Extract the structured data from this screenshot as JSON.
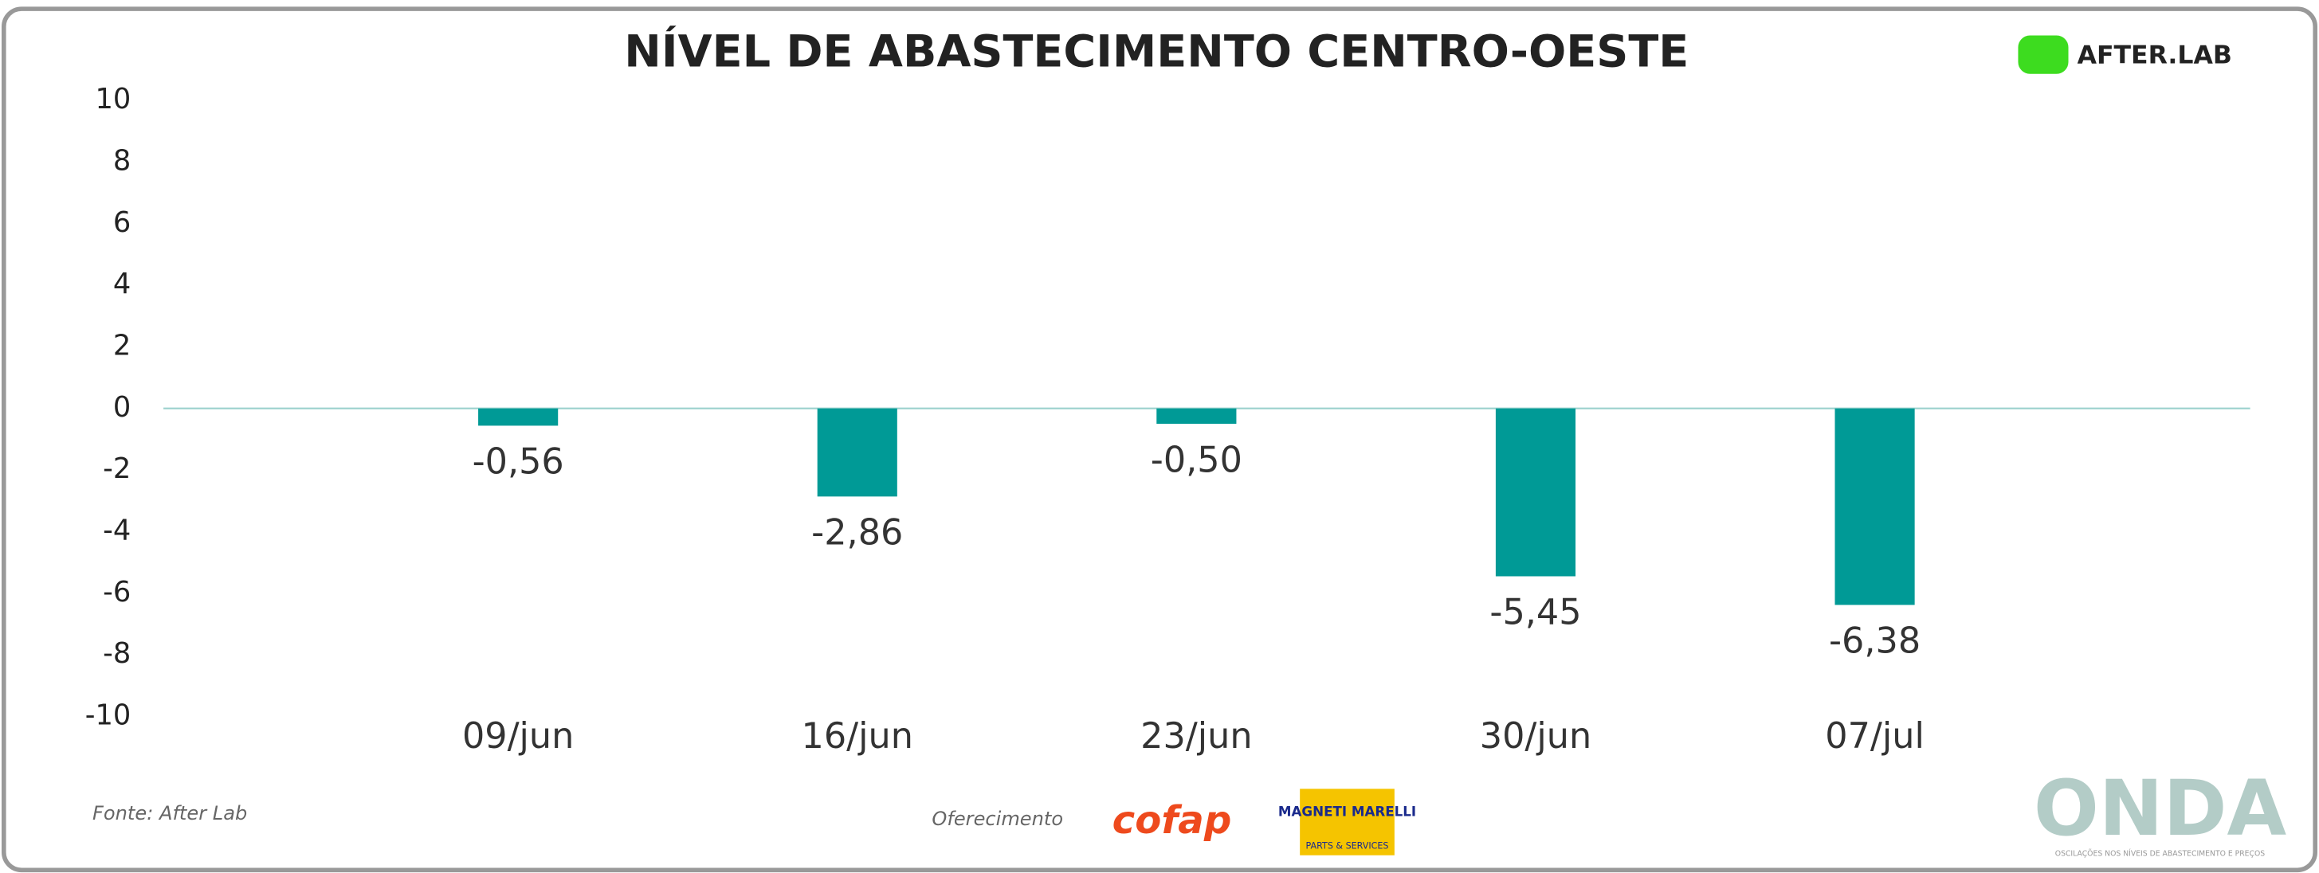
{
  "chart_data": {
    "type": "bar",
    "title": "NÍVEL DE ABASTECIMENTO CENTRO-OESTE",
    "categories": [
      "09/jun",
      "16/jun",
      "23/jun",
      "30/jun",
      "07/jul"
    ],
    "values": [
      -0.56,
      -2.86,
      -0.5,
      -5.45,
      -6.38
    ],
    "value_labels": [
      "-0,56",
      "-2,86",
      "-0,50",
      "-5,45",
      "-6,38"
    ],
    "color": "#009a96",
    "ylim": [
      -10,
      10
    ],
    "yticks": [
      -10,
      -8,
      -6,
      -4,
      -2,
      0,
      2,
      4,
      6,
      8,
      10
    ],
    "grid": false
  },
  "footer": {
    "source": "Fonte: After Lab",
    "sponsor": "Oferecimento"
  },
  "logos": {
    "afterlab": "AFTER.LAB",
    "cofap": "cofap",
    "magneti": "MAGNETI MARELLI",
    "magneti_sub": "PARTS & SERVICES",
    "onda": "ONDA",
    "onda_sub": "OSCILAÇÕES NOS NÍVEIS DE ABASTECIMENTO E PREÇOS"
  }
}
